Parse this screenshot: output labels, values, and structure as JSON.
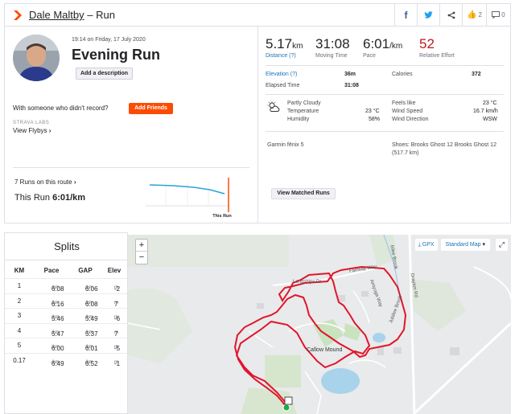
{
  "header": {
    "athlete": "Dale Maltby",
    "separator": " – Run",
    "kudos_count": "2",
    "comments_count": "0"
  },
  "activity": {
    "datetime": "19:14 on Friday, 17 July 2020",
    "title": "Evening Run",
    "add_description": "Add a description",
    "someone_text": "With someone who didn't record?",
    "add_friends": "Add Friends",
    "labs_label": "STRAVA LABS",
    "view_flybys": "View Flybys",
    "runs_on_route": "7 Runs on this route",
    "this_run_label": "This Run ",
    "this_run_pace": "6:01/km",
    "chart_label": "This Run",
    "view_matched": "View Matched Runs"
  },
  "stats": {
    "distance_value": "5.17",
    "distance_unit": "km",
    "distance_label": "Distance (?)",
    "moving_time_value": "31:08",
    "moving_time_label": "Moving Time",
    "pace_value": "6:01",
    "pace_unit": "/km",
    "pace_label": "Pace",
    "effort_value": "52",
    "effort_label": "Relative Effort",
    "elevation_label": "Elevation (?)",
    "elevation_value": "36m",
    "calories_label": "Calories",
    "calories_value": "372",
    "elapsed_label": "Elapsed Time",
    "elapsed_value": "31:08"
  },
  "weather": {
    "condition": "Partly Cloudy",
    "temperature_label": "Temperature",
    "temperature_value": "23 °C",
    "humidity_label": "Humidity",
    "humidity_value": "58%",
    "feels_like_label": "Feels like",
    "feels_like_value": "23 °C",
    "wind_speed_label": "Wind Speed",
    "wind_speed_value": "16.7 km/h",
    "wind_dir_label": "Wind Direction",
    "wind_dir_value": "WSW"
  },
  "gear": {
    "device": "Garmin fēnix 5",
    "shoes": "Shoes: Brooks Ghost 12 Brooks Ghost 12",
    "shoes_distance": "(517.7 km)"
  },
  "splits": {
    "title": "Splits",
    "headers": [
      "KM",
      "Pace",
      "GAP",
      "Elev"
    ],
    "unit_label": "/km",
    "elev_unit": "m",
    "rows": [
      {
        "km": "1",
        "pace": "6:08",
        "gap": "6:06",
        "elev": "-2"
      },
      {
        "km": "2",
        "pace": "6:16",
        "gap": "6:08",
        "elev": "7"
      },
      {
        "km": "3",
        "pace": "5:46",
        "gap": "5:49",
        "elev": "-6"
      },
      {
        "km": "4",
        "pace": "5:47",
        "gap": "5:37",
        "elev": "7"
      },
      {
        "km": "5",
        "pace": "6:00",
        "gap": "6:01",
        "elev": "-5"
      },
      {
        "km": "0.17",
        "pace": "6:49",
        "gap": "6:52",
        "elev": "-1"
      }
    ]
  },
  "map": {
    "zoom_in": "+",
    "zoom_out": "−",
    "gpx_label": "GPX",
    "map_type": "Standard Map",
    "labels": {
      "longships": "Longships Dr",
      "fairway": "Fairway Way",
      "arroyo": "Arriyoga Way",
      "jubilee": "Jubilee Brook",
      "drayton": "Drayton Rd",
      "drayton_brook": "bilee Brook",
      "callow": "Callow Mound"
    }
  },
  "colors": {
    "brand": "#fc4c02",
    "route": "#e0162b",
    "link": "#1a73b5",
    "effort": "#c0191e"
  }
}
